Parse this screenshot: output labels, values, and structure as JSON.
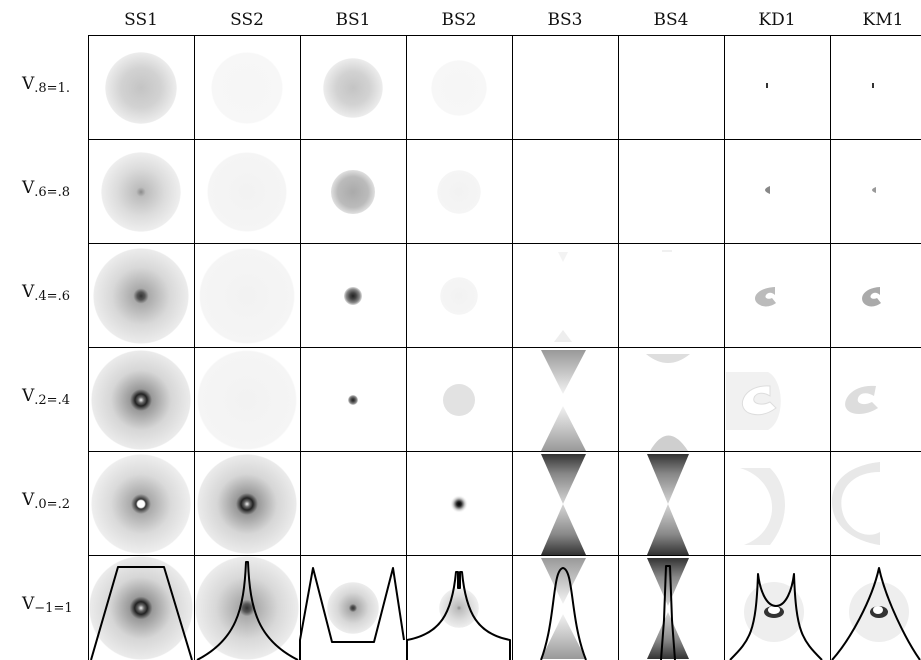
{
  "columns": [
    "SS1",
    "SS2",
    "BS1",
    "BS2",
    "BS3",
    "BS4",
    "KD1",
    "KM1"
  ],
  "rows": [
    {
      "v": "V",
      "sub": ".8=1."
    },
    {
      "v": "V",
      "sub": ".6=.8"
    },
    {
      "v": "V",
      "sub": ".4=.6"
    },
    {
      "v": "V",
      "sub": ".2=.4"
    },
    {
      "v": "V",
      "sub": ".0=.2"
    },
    {
      "v": "V",
      "sub": "−1=1"
    }
  ]
}
